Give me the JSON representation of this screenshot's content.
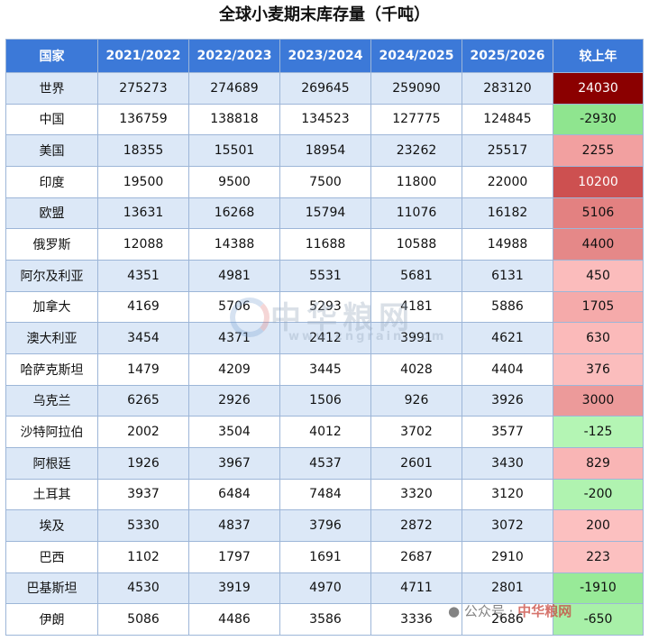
{
  "title": "全球小麦期末库存量（千吨）",
  "chart_data": {
    "type": "table",
    "title": "全球小麦期末库存量（千吨）",
    "columns": [
      "国家",
      "2021/2022",
      "2022/2023",
      "2023/2024",
      "2024/2025",
      "2025/2026",
      "较上年"
    ],
    "rows": [
      {
        "country": "世界",
        "values": [
          275273,
          274689,
          269645,
          259090,
          283120
        ],
        "change": 24030,
        "change_color": "#8b0000"
      },
      {
        "country": "中国",
        "values": [
          136759,
          138818,
          134523,
          127775,
          124845
        ],
        "change": -2930,
        "change_color": "#8fe58f"
      },
      {
        "country": "美国",
        "values": [
          18355,
          15501,
          18954,
          23262,
          25517
        ],
        "change": 2255,
        "change_color": "#f2a0a0"
      },
      {
        "country": "印度",
        "values": [
          19500,
          9500,
          7500,
          11800,
          22000
        ],
        "change": 10200,
        "change_color": "#cd5050"
      },
      {
        "country": "欧盟",
        "values": [
          13631,
          16268,
          15794,
          11076,
          16182
        ],
        "change": 5106,
        "change_color": "#e38181"
      },
      {
        "country": "俄罗斯",
        "values": [
          12088,
          14388,
          11688,
          10588,
          14988
        ],
        "change": 4400,
        "change_color": "#e58888"
      },
      {
        "country": "阿尔及利亚",
        "values": [
          4351,
          4981,
          5531,
          5681,
          6131
        ],
        "change": 450,
        "change_color": "#fbbcbc"
      },
      {
        "country": "加拿大",
        "values": [
          4169,
          5706,
          5293,
          4181,
          5886
        ],
        "change": 1705,
        "change_color": "#f5aaaa"
      },
      {
        "country": "澳大利亚",
        "values": [
          3454,
          4371,
          2412,
          3991,
          4621
        ],
        "change": 630,
        "change_color": "#fbbaba"
      },
      {
        "country": "哈萨克斯坦",
        "values": [
          1479,
          4209,
          3445,
          4028,
          4404
        ],
        "change": 376,
        "change_color": "#fbbdbd"
      },
      {
        "country": "乌克兰",
        "values": [
          6265,
          2926,
          1506,
          926,
          3926
        ],
        "change": 3000,
        "change_color": "#ec9a9a"
      },
      {
        "country": "沙特阿拉伯",
        "values": [
          2002,
          3504,
          4012,
          3702,
          3577
        ],
        "change": -125,
        "change_color": "#b4f5b4"
      },
      {
        "country": "阿根廷",
        "values": [
          1926,
          3967,
          4537,
          2601,
          3430
        ],
        "change": 829,
        "change_color": "#f9b5b5"
      },
      {
        "country": "土耳其",
        "values": [
          3937,
          6484,
          7484,
          3320,
          3120
        ],
        "change": -200,
        "change_color": "#b0f3b0"
      },
      {
        "country": "埃及",
        "values": [
          5330,
          4837,
          3796,
          2872,
          3072
        ],
        "change": 200,
        "change_color": "#fcc0c0"
      },
      {
        "country": "巴西",
        "values": [
          1102,
          1797,
          1691,
          2687,
          2910
        ],
        "change": 223,
        "change_color": "#fcc0c0"
      },
      {
        "country": "巴基斯坦",
        "values": [
          4530,
          3919,
          4970,
          4711,
          2801
        ],
        "change": -1910,
        "change_color": "#98ea98"
      },
      {
        "country": "伊朗",
        "values": [
          5086,
          4486,
          3586,
          3336,
          2686
        ],
        "change": -650,
        "change_color": "#a8f0a8"
      }
    ]
  },
  "watermark": {
    "main": "中华粮网",
    "sub": "www.cngrain.com",
    "footer_prefix": "公众号 · ",
    "footer_brand": "中华粮网"
  }
}
